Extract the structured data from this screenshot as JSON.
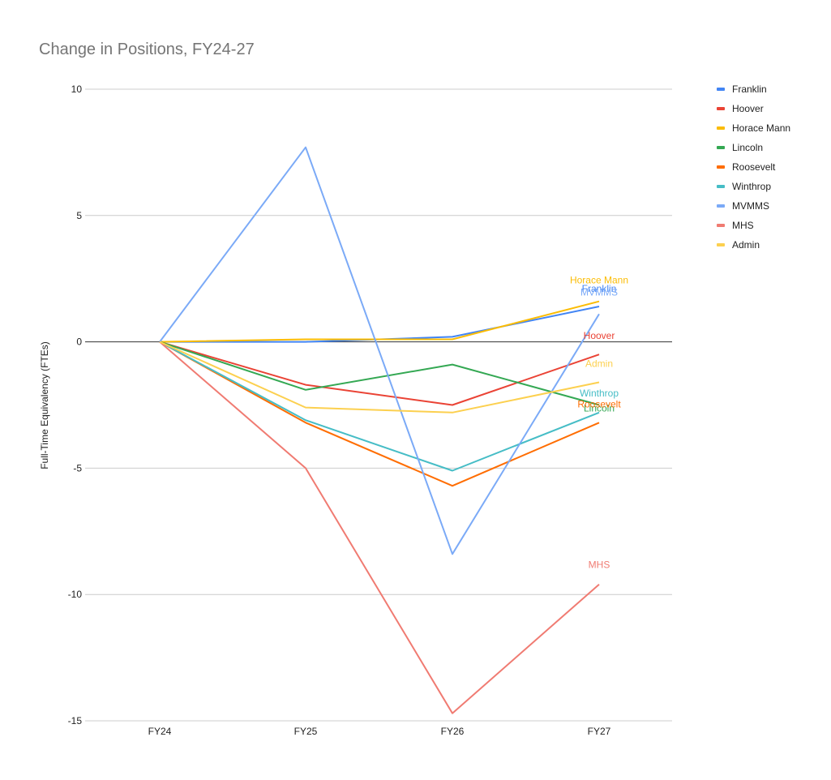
{
  "chart_data": {
    "type": "line",
    "title": "Change in Positions, FY24-27",
    "xlabel": "",
    "ylabel": "Full-Time Equivalency (FTEs)",
    "categories": [
      "FY24",
      "FY25",
      "FY26",
      "FY27"
    ],
    "ylim": [
      -15,
      10
    ],
    "yticks": [
      10,
      5,
      0,
      -5,
      -10,
      -15
    ],
    "ytick_labels": [
      "10",
      "5",
      "0",
      "-5",
      "-10",
      "-15"
    ],
    "grid": true,
    "legend_position": "right",
    "series": [
      {
        "name": "Franklin",
        "color": "#4285f4",
        "values": [
          0,
          0.0,
          0.2,
          1.4
        ]
      },
      {
        "name": "Hoover",
        "color": "#ea4335",
        "values": [
          0,
          -1.7,
          -2.5,
          -0.5
        ]
      },
      {
        "name": "Horace Mann",
        "color": "#fbbc04",
        "values": [
          0,
          0.1,
          0.1,
          1.6
        ]
      },
      {
        "name": "Lincoln",
        "color": "#34a853",
        "values": [
          0,
          -1.9,
          -0.9,
          -2.5
        ]
      },
      {
        "name": "Roosevelt",
        "color": "#ff6d01",
        "values": [
          0,
          -3.2,
          -5.7,
          -3.2
        ]
      },
      {
        "name": "Winthrop",
        "color": "#46bdc6",
        "values": [
          0,
          -3.1,
          -5.1,
          -2.8
        ]
      },
      {
        "name": "MVMMS",
        "color": "#7baaf7",
        "values": [
          0,
          7.7,
          -8.4,
          1.1
        ]
      },
      {
        "name": "MHS",
        "color": "#f07b72",
        "values": [
          0,
          -5.0,
          -14.7,
          -9.6
        ]
      },
      {
        "name": "Admin",
        "color": "#fcd04f",
        "values": [
          0,
          -2.6,
          -2.8,
          -1.6
        ]
      }
    ]
  }
}
